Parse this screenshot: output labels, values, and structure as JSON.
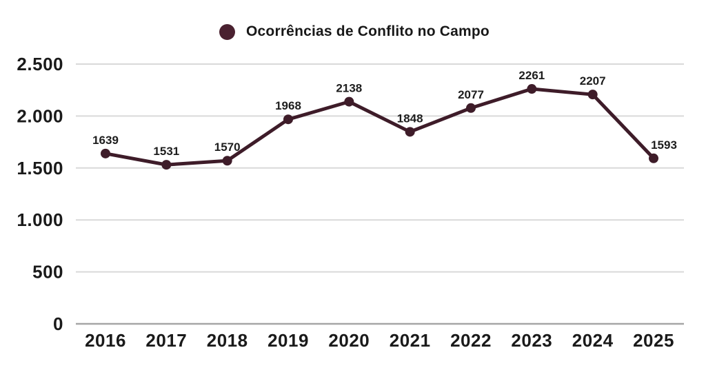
{
  "legend": {
    "label": "Ocorrências de Conflito no Campo",
    "marker_color": "#4a2130"
  },
  "chart_data": {
    "type": "line",
    "title": "Ocorrências de Conflito no Campo",
    "categories": [
      "2016",
      "2017",
      "2018",
      "2019",
      "2020",
      "2021",
      "2022",
      "2023",
      "2024",
      "2025"
    ],
    "series": [
      {
        "name": "Ocorrências de Conflito no Campo",
        "values": [
          1639,
          1531,
          1570,
          1968,
          2138,
          1848,
          2077,
          2261,
          2207,
          1593
        ],
        "color": "#3e1c29"
      }
    ],
    "xlabel": "",
    "ylabel": "",
    "ylim": [
      0,
      2500
    ],
    "yticks": [
      0,
      500,
      1000,
      1500,
      2000,
      2500
    ],
    "ytick_labels": [
      "0",
      "500",
      "1.000",
      "1.500",
      "2.000",
      "2.500"
    ],
    "grid": true,
    "legend_position": "top",
    "data_labels": true
  },
  "colors": {
    "line": "#3e1c29",
    "marker": "#3e1c29",
    "grid": "#d9d9d9",
    "axis_line": "#a6a6a6",
    "tick_text": "#1a1a1a",
    "data_label_text": "#1d1d1d",
    "background": "#ffffff"
  }
}
